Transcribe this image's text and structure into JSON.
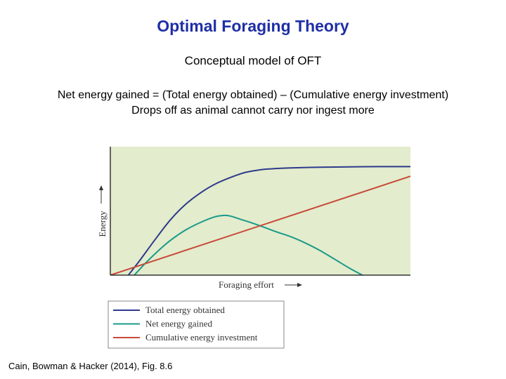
{
  "header": {
    "title": "Optimal Foraging Theory",
    "subtitle": "Conceptual model of OFT",
    "line1": "Net energy gained = (Total energy obtained) – (Cumulative energy investment)",
    "line2": "Drops off as animal cannot carry nor ingest more"
  },
  "citation": "Cain, Bowman & Hacker (2014), Fig. 8.6",
  "chart_data": {
    "type": "line",
    "title": "",
    "xlabel": "Foraging effort",
    "ylabel": "Energy",
    "xlim": [
      0,
      100
    ],
    "ylim": [
      0,
      100
    ],
    "grid": false,
    "legend_position": "below",
    "background_color": "#e3eccc",
    "series": [
      {
        "name": "Total energy obtained",
        "color": "#2e3a8c",
        "x": [
          6,
          10,
          15,
          20,
          25,
          30,
          35,
          40,
          45,
          50,
          55,
          60,
          70,
          80,
          90,
          100
        ],
        "y": [
          0,
          12,
          28,
          43,
          55,
          64,
          71,
          76,
          80,
          82,
          83,
          83.5,
          84,
          84.3,
          84.5,
          84.5
        ]
      },
      {
        "name": "Net energy gained",
        "color": "#1a9a8a",
        "x": [
          8,
          12,
          16,
          20,
          25,
          30,
          35,
          38,
          40,
          44,
          48,
          55,
          60,
          65,
          70,
          75,
          80,
          84
        ],
        "y": [
          0,
          10,
          19,
          27,
          35,
          41,
          45.5,
          46.5,
          46,
          43,
          40,
          34,
          30,
          25,
          19,
          12,
          5,
          0
        ]
      },
      {
        "name": "Cumulative energy investment",
        "color": "#c84a3a",
        "x": [
          0,
          100
        ],
        "y": [
          0,
          77
        ]
      }
    ]
  }
}
